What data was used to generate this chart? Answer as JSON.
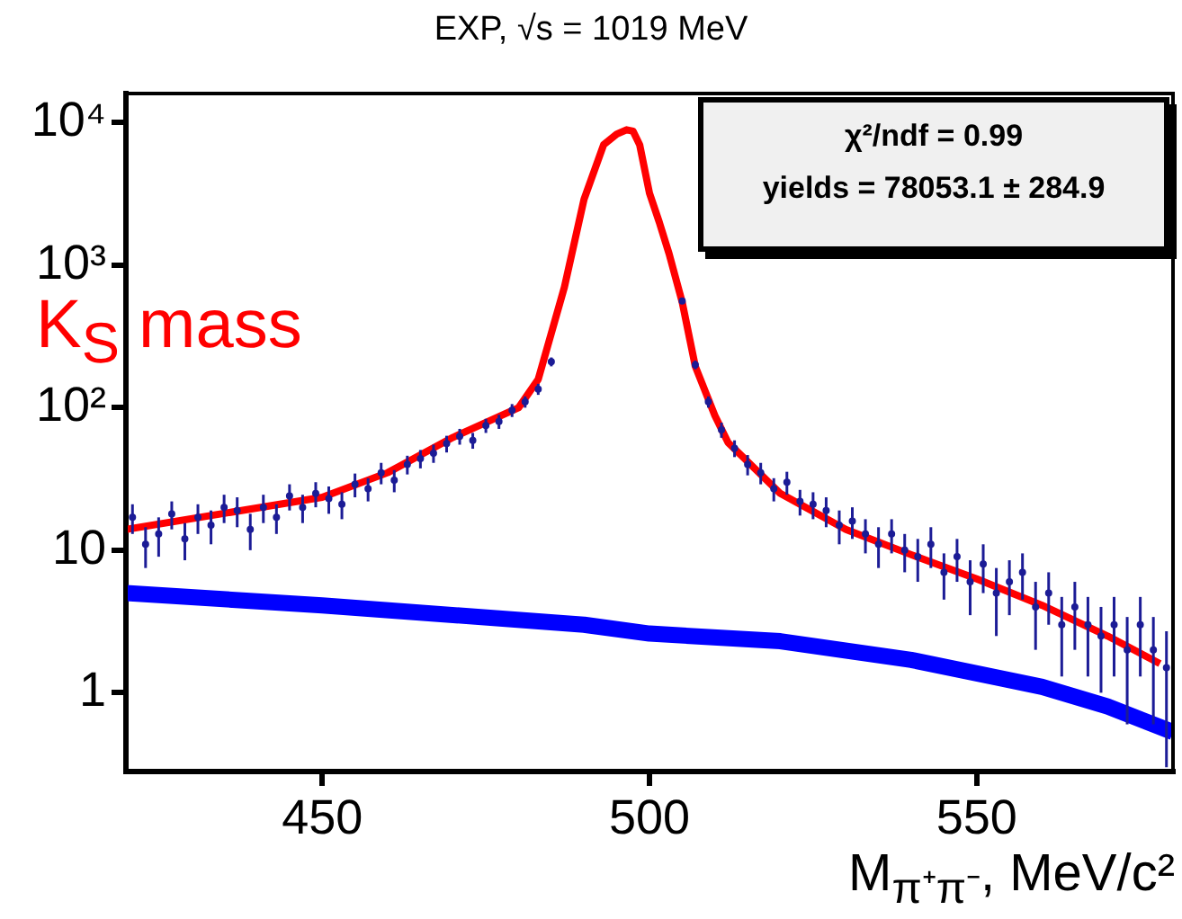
{
  "chart_data": {
    "type": "scatter",
    "title": "EXP, √s = 1019 MeV",
    "xlabel": "M$_{π⁺π⁻}$, MeV/c²",
    "annotations": [
      "χ²/ndf = 0.99",
      "yields = 78053.1 ± 284.9",
      "K$_{S}$ mass"
    ],
    "log": "y",
    "legend": false,
    "grid": false,
    "xlim": [
      420,
      580
    ],
    "xticks": [
      450,
      500,
      550
    ],
    "ylim": [
      0.28,
      16000
    ],
    "yticks": [
      1,
      10,
      {
        "value": 100,
        "label": "10²"
      },
      {
        "value": 1000,
        "label": "10³"
      },
      {
        "value": 10000,
        "label": "10⁴"
      }
    ],
    "series": [
      {
        "color": "#1c1c96",
        "x": [
          421,
          423,
          425,
          427,
          429,
          431,
          433,
          435,
          437,
          439,
          441,
          443,
          445,
          447,
          449,
          451,
          453,
          455,
          457,
          459,
          461,
          463,
          465,
          467,
          469,
          471,
          473,
          475,
          477,
          479,
          481,
          483,
          485,
          505,
          507,
          509,
          511,
          513,
          515,
          517,
          519,
          521,
          523,
          525,
          527,
          529,
          531,
          533,
          535,
          537,
          539,
          541,
          543,
          545,
          547,
          549,
          551,
          553,
          555,
          557,
          559,
          561,
          563,
          565,
          567,
          569,
          571,
          573,
          575,
          577,
          579
        ],
        "values": [
          17,
          11,
          13,
          18,
          12,
          17,
          15,
          20,
          19,
          14,
          20,
          17,
          24,
          20,
          25,
          23,
          21,
          29,
          27,
          35,
          31,
          40,
          44,
          48,
          56,
          63,
          59,
          75,
          80,
          96,
          110,
          135,
          210,
          560,
          200,
          110,
          70,
          52,
          40,
          35,
          27,
          30,
          22,
          21,
          19,
          15,
          16,
          13,
          11,
          13,
          10,
          9,
          11,
          7,
          9,
          6,
          8,
          5,
          6,
          7,
          4,
          5,
          3,
          4,
          3,
          2.5,
          3,
          2,
          3,
          2,
          1.5
        ],
        "errors": [
          4,
          3.5,
          4,
          4,
          3.5,
          4,
          4,
          4.5,
          4.5,
          4,
          4.5,
          4,
          5,
          4.5,
          5,
          5,
          4.5,
          5.5,
          5,
          6,
          5.5,
          6,
          6.5,
          7,
          7.5,
          8,
          7.5,
          8.5,
          9,
          10,
          10,
          12,
          15,
          24,
          14,
          10,
          8.5,
          7,
          6.5,
          6,
          5,
          5.5,
          4.5,
          4.5,
          4.5,
          4,
          4,
          3.5,
          3.5,
          3.5,
          3,
          3,
          3.5,
          2.5,
          3,
          2.5,
          3,
          2.5,
          2.5,
          2.5,
          2,
          2,
          1.7,
          2,
          1.7,
          1.5,
          1.7,
          1.4,
          1.7,
          1.4,
          1.2
        ]
      },
      {
        "type": "line",
        "color": "#ff0000",
        "x": [
          420,
          450,
          460,
          470,
          480,
          483,
          487,
          490,
          493,
          495,
          496.5,
          497.5,
          498.5,
          500,
          501.5,
          503,
          505,
          507,
          510,
          512,
          520,
          530,
          540,
          550,
          560,
          570,
          578
        ],
        "values": [
          14,
          23.5,
          35,
          62,
          100,
          158,
          700,
          2900,
          7000,
          8300,
          8900,
          8700,
          7000,
          3200,
          2000,
          1200,
          550,
          195,
          88,
          57,
          25,
          14,
          9.3,
          6.3,
          4.1,
          2.5,
          1.6
        ]
      },
      {
        "type": "line",
        "color": "#0000ff",
        "x": [
          420,
          450,
          490,
          500,
          520,
          540,
          560,
          570,
          580
        ],
        "values": [
          5,
          4.1,
          3,
          2.6,
          2.3,
          1.7,
          1.1,
          0.8,
          0.53
        ]
      }
    ]
  }
}
